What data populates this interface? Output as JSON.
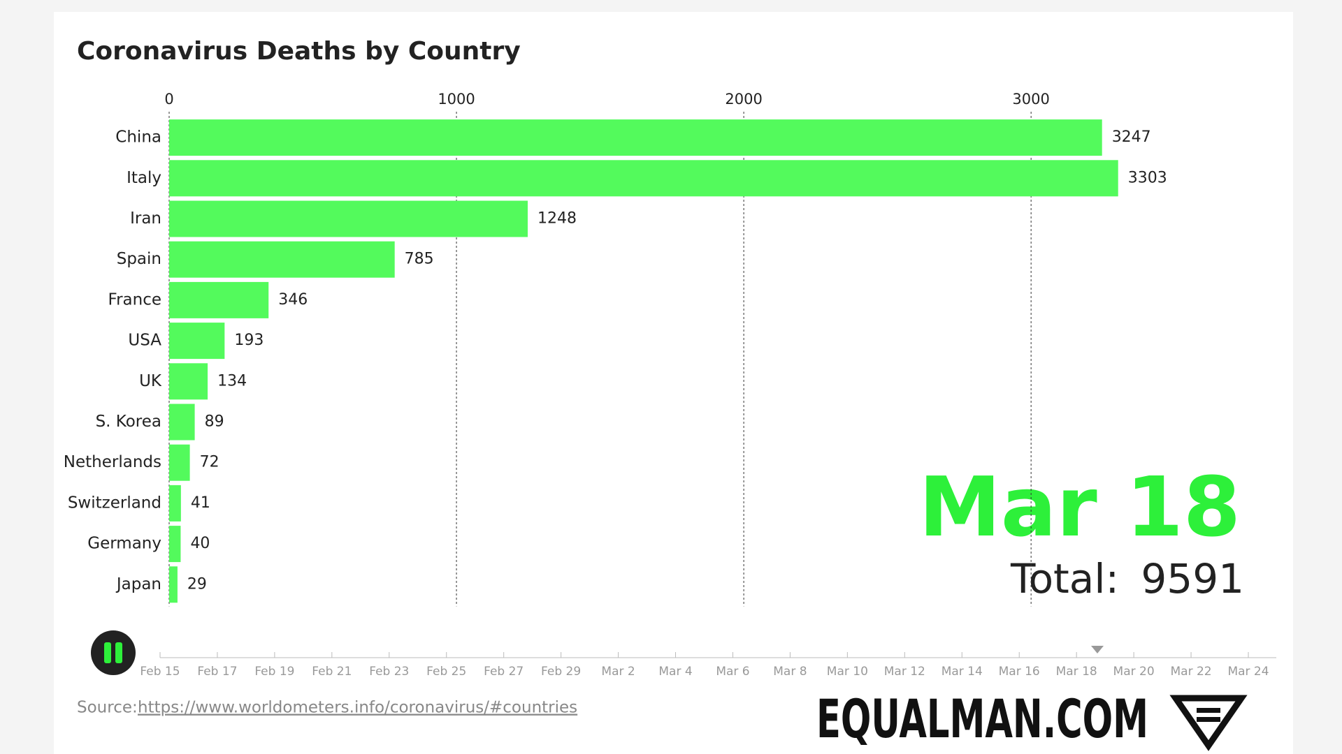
{
  "chart_data": {
    "type": "bar",
    "orientation": "horizontal",
    "title": "Coronavirus Deaths by Country",
    "categories": [
      "China",
      "Italy",
      "Iran",
      "Spain",
      "France",
      "USA",
      "UK",
      "S. Korea",
      "Netherlands",
      "Switzerland",
      "Germany",
      "Japan"
    ],
    "values": [
      3247,
      3303,
      1248,
      785,
      346,
      193,
      134,
      89,
      72,
      41,
      40,
      29
    ],
    "color": "#53fa5c",
    "xlim": [
      0,
      3800
    ],
    "xticks": [
      0,
      1000,
      2000,
      3000
    ],
    "grid": true,
    "date": "Mar 18",
    "total_label": "Total:",
    "total": 9591,
    "timeline_labels": [
      "Feb 15",
      "Feb 17",
      "Feb 19",
      "Feb 21",
      "Feb 23",
      "Feb 25",
      "Feb 27",
      "Feb 29",
      "Mar 2",
      "Mar 4",
      "Mar 6",
      "Mar 8",
      "Mar 10",
      "Mar 12",
      "Mar 14",
      "Mar 16",
      "Mar 18",
      "Mar 20",
      "Mar 22",
      "Mar 24"
    ],
    "source_label": "Source:",
    "source_url": "https://www.worldometers.info/coronavirus/#countries",
    "brand": "EQUALMAN.COM"
  }
}
